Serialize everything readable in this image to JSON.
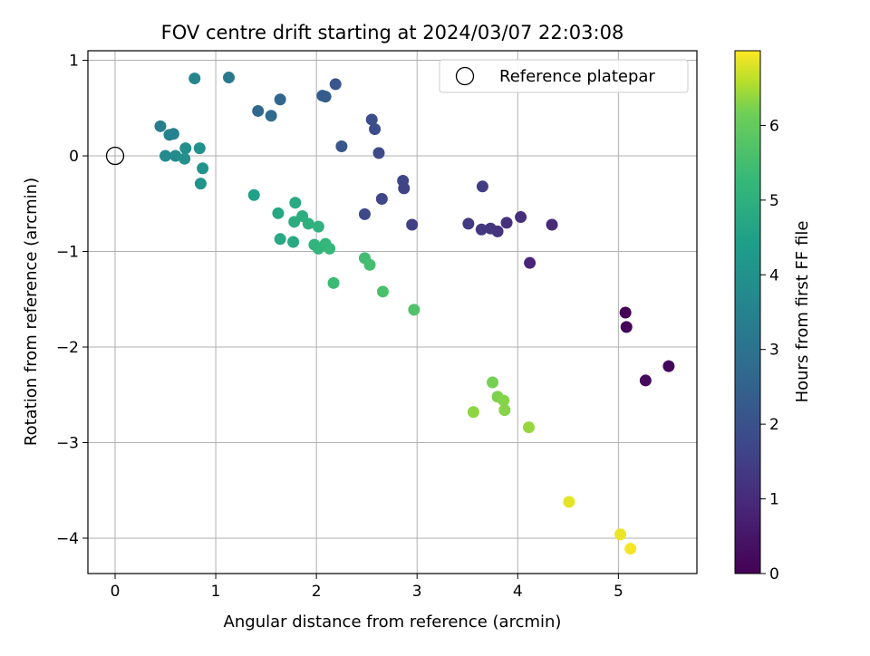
{
  "chart_data": {
    "type": "scatter",
    "title": "FOV centre drift starting at 2024/03/07 22:03:08",
    "xlabel": "Angular distance from reference (arcmin)",
    "ylabel": "Rotation from reference (arcmin)",
    "xlim": [
      -0.27,
      5.78
    ],
    "ylim": [
      -4.37,
      1.1
    ],
    "x_ticks": [
      0,
      1,
      2,
      3,
      4,
      5
    ],
    "y_ticks": [
      -4,
      -3,
      -2,
      -1,
      0,
      1
    ],
    "grid": true,
    "legend": {
      "position": "top-right",
      "entries": [
        "Reference platepar"
      ]
    },
    "reference_point": {
      "x": 0,
      "y": 0,
      "label": "Reference platepar"
    },
    "colorbar": {
      "label": "Hours from first FF file",
      "range": [
        0,
        7.0
      ],
      "ticks": [
        0,
        1,
        2,
        3,
        4,
        5,
        6
      ],
      "colormap": "viridis"
    },
    "points": [
      {
        "x": 5.07,
        "y": -1.64,
        "c": 0.05
      },
      {
        "x": 5.08,
        "y": -1.79,
        "c": 0.1
      },
      {
        "x": 5.5,
        "y": -2.2,
        "c": 0.15
      },
      {
        "x": 5.27,
        "y": -2.35,
        "c": 0.2
      },
      {
        "x": 4.12,
        "y": -1.12,
        "c": 0.85
      },
      {
        "x": 4.34,
        "y": -0.72,
        "c": 0.95
      },
      {
        "x": 4.03,
        "y": -0.64,
        "c": 1.1
      },
      {
        "x": 3.89,
        "y": -0.7,
        "c": 1.15
      },
      {
        "x": 3.8,
        "y": -0.79,
        "c": 1.2
      },
      {
        "x": 3.73,
        "y": -0.76,
        "c": 1.25
      },
      {
        "x": 3.64,
        "y": -0.77,
        "c": 1.3
      },
      {
        "x": 3.51,
        "y": -0.71,
        "c": 1.4
      },
      {
        "x": 3.65,
        "y": -0.32,
        "c": 1.45
      },
      {
        "x": 2.95,
        "y": -0.72,
        "c": 1.55
      },
      {
        "x": 2.87,
        "y": -0.34,
        "c": 1.6
      },
      {
        "x": 2.86,
        "y": -0.26,
        "c": 1.65
      },
      {
        "x": 2.65,
        "y": -0.45,
        "c": 1.7
      },
      {
        "x": 2.48,
        "y": -0.61,
        "c": 1.75
      },
      {
        "x": 2.62,
        "y": 0.03,
        "c": 1.8
      },
      {
        "x": 2.58,
        "y": 0.28,
        "c": 1.85
      },
      {
        "x": 2.55,
        "y": 0.38,
        "c": 1.9
      },
      {
        "x": 2.19,
        "y": 0.75,
        "c": 2.1
      },
      {
        "x": 2.25,
        "y": 0.1,
        "c": 2.2
      },
      {
        "x": 2.09,
        "y": 0.62,
        "c": 2.3
      },
      {
        "x": 2.06,
        "y": 0.63,
        "c": 2.35
      },
      {
        "x": 1.64,
        "y": 0.59,
        "c": 2.6
      },
      {
        "x": 1.42,
        "y": 0.47,
        "c": 2.7
      },
      {
        "x": 1.55,
        "y": 0.42,
        "c": 2.8
      },
      {
        "x": 1.13,
        "y": 0.82,
        "c": 3.2
      },
      {
        "x": 0.79,
        "y": 0.81,
        "c": 3.6
      },
      {
        "x": 0.45,
        "y": 0.31,
        "c": 3.35
      },
      {
        "x": 0.54,
        "y": 0.22,
        "c": 3.45
      },
      {
        "x": 0.58,
        "y": 0.23,
        "c": 3.5
      },
      {
        "x": 0.5,
        "y": 0.0,
        "c": 3.75
      },
      {
        "x": 0.6,
        "y": 0.0,
        "c": 3.8
      },
      {
        "x": 0.7,
        "y": 0.08,
        "c": 3.9
      },
      {
        "x": 0.69,
        "y": -0.03,
        "c": 3.95
      },
      {
        "x": 0.84,
        "y": 0.08,
        "c": 4.0
      },
      {
        "x": 0.87,
        "y": -0.13,
        "c": 4.05
      },
      {
        "x": 0.85,
        "y": -0.29,
        "c": 4.1
      },
      {
        "x": 1.38,
        "y": -0.41,
        "c": 4.5
      },
      {
        "x": 1.62,
        "y": -0.6,
        "c": 4.7
      },
      {
        "x": 1.79,
        "y": -0.49,
        "c": 4.8
      },
      {
        "x": 1.64,
        "y": -0.87,
        "c": 4.75
      },
      {
        "x": 1.77,
        "y": -0.9,
        "c": 4.8
      },
      {
        "x": 1.78,
        "y": -0.69,
        "c": 4.9
      },
      {
        "x": 1.86,
        "y": -0.63,
        "c": 4.95
      },
      {
        "x": 1.92,
        "y": -0.71,
        "c": 5.0
      },
      {
        "x": 2.02,
        "y": -0.74,
        "c": 5.05
      },
      {
        "x": 1.98,
        "y": -0.93,
        "c": 5.1
      },
      {
        "x": 2.02,
        "y": -0.97,
        "c": 5.15
      },
      {
        "x": 2.09,
        "y": -0.92,
        "c": 5.2
      },
      {
        "x": 2.13,
        "y": -0.97,
        "c": 5.25
      },
      {
        "x": 2.17,
        "y": -1.33,
        "c": 5.35
      },
      {
        "x": 2.48,
        "y": -1.07,
        "c": 5.45
      },
      {
        "x": 2.53,
        "y": -1.14,
        "c": 5.5
      },
      {
        "x": 2.66,
        "y": -1.42,
        "c": 5.6
      },
      {
        "x": 2.97,
        "y": -1.61,
        "c": 5.7
      },
      {
        "x": 3.75,
        "y": -2.37,
        "c": 6.2
      },
      {
        "x": 3.8,
        "y": -2.52,
        "c": 6.25
      },
      {
        "x": 3.86,
        "y": -2.56,
        "c": 6.3
      },
      {
        "x": 3.87,
        "y": -2.66,
        "c": 6.3
      },
      {
        "x": 3.56,
        "y": -2.68,
        "c": 6.35
      },
      {
        "x": 4.11,
        "y": -2.84,
        "c": 6.4
      },
      {
        "x": 4.51,
        "y": -3.62,
        "c": 6.85
      },
      {
        "x": 5.02,
        "y": -3.96,
        "c": 6.9
      },
      {
        "x": 5.12,
        "y": -4.11,
        "c": 6.95
      }
    ]
  }
}
